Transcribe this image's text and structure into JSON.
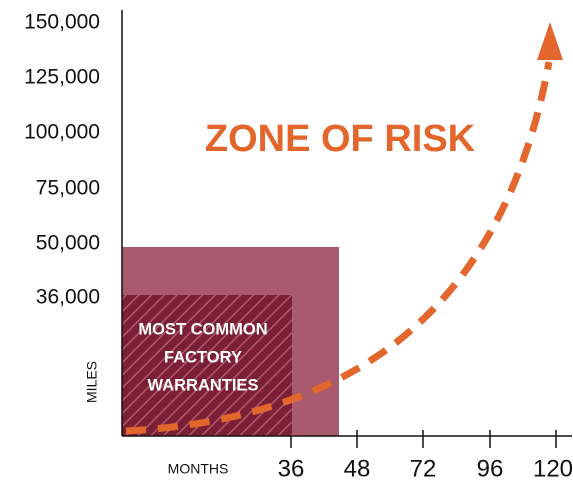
{
  "colors": {
    "accent": "#e3662d",
    "outer_box": "#a95a6e",
    "inner_box": "#7a1f36",
    "hatch": "#b05a6a",
    "axis": "#111111"
  },
  "chart_data": {
    "type": "area",
    "title": "ZONE OF RISK",
    "xlabel": "MONTHS",
    "ylabel": "MILES",
    "x_ticks": [
      "36",
      "48",
      "72",
      "96",
      "120"
    ],
    "y_ticks": [
      "150,000",
      "125,000",
      "100,000",
      "75,000",
      "50,000",
      "36,000"
    ],
    "regions": [
      {
        "name": "extended-coverage-region",
        "x_max": 48,
        "y_max": 50000
      },
      {
        "name": "MOST COMMON FACTORY WARRANTIES",
        "x_max": 36,
        "y_max": 36000
      }
    ],
    "inner_box_label": [
      "MOST COMMON",
      "FACTORY",
      "WARRANTIES"
    ],
    "risk_curve": "dashed exponential arrow rising from lower-left to top-right"
  }
}
